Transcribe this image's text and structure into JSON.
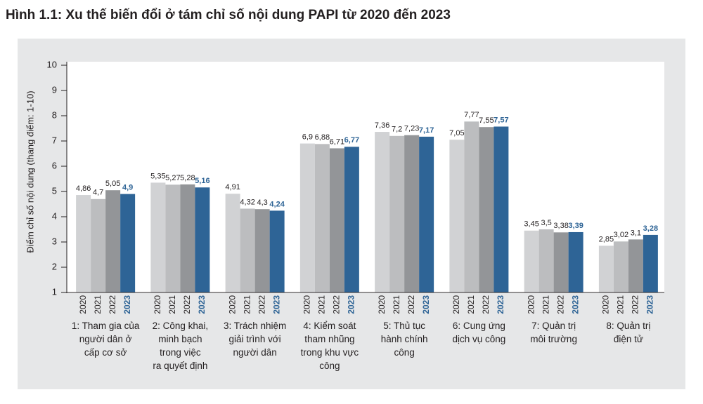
{
  "chart_data": {
    "type": "bar",
    "title": "Hình 1.1: Xu thế biến đổi ở tám chỉ số nội dung PAPI từ 2020 đến 2023",
    "ylabel": "Điểm chỉ số nội dung (thang điểm: 1-10)",
    "categories": [
      "1: Tham gia của\nngười dân ở\ncấp cơ sở",
      "2: Công khai,\nminh bạch\ntrong việc\nra quyết định",
      "3: Trách nhiệm\ngiải trình với\nngười dân",
      "4: Kiểm soát\ntham nhũng\ntrong khu vực\ncông",
      "5: Thủ tục\nhành chính\ncông",
      "6: Cung ứng\ndịch vụ công",
      "7: Quản trị\nmôi trường",
      "8: Quản trị\nđiện tử"
    ],
    "series": [
      {
        "name": "2020",
        "color": "#d1d2d4",
        "values": [
          4.86,
          5.35,
          4.91,
          6.9,
          7.36,
          7.05,
          3.45,
          2.85
        ],
        "value_labels": [
          "4,86",
          "5,35",
          "4,91",
          "6,9",
          "7,36",
          "7,05",
          "3,45",
          "2,85"
        ]
      },
      {
        "name": "2021",
        "color": "#bcbdbf",
        "values": [
          4.7,
          5.27,
          4.32,
          6.88,
          7.2,
          7.77,
          3.5,
          3.02
        ],
        "value_labels": [
          "4,7",
          "5,27",
          "4,32",
          "6,88",
          "7,2",
          "7,77",
          "3,5",
          "3,02"
        ]
      },
      {
        "name": "2022",
        "color": "#939598",
        "values": [
          5.05,
          5.28,
          4.3,
          6.71,
          7.23,
          7.55,
          3.38,
          3.1
        ],
        "value_labels": [
          "5,05",
          "5,28",
          "4,3",
          "6,71",
          "7,23",
          "7,55",
          "3,38",
          "3,1"
        ]
      },
      {
        "name": "2023",
        "color": "#2e6496",
        "values": [
          4.9,
          5.16,
          4.24,
          6.77,
          7.17,
          7.57,
          3.39,
          3.28
        ],
        "value_labels": [
          "4,9",
          "5,16",
          "4,24",
          "6,77",
          "7,17",
          "7,57",
          "3,39",
          "3,28"
        ]
      }
    ],
    "ylim": [
      1,
      10
    ],
    "yticks": [
      1,
      2,
      3,
      4,
      5,
      6,
      7,
      8,
      9,
      10
    ],
    "grid": false
  }
}
